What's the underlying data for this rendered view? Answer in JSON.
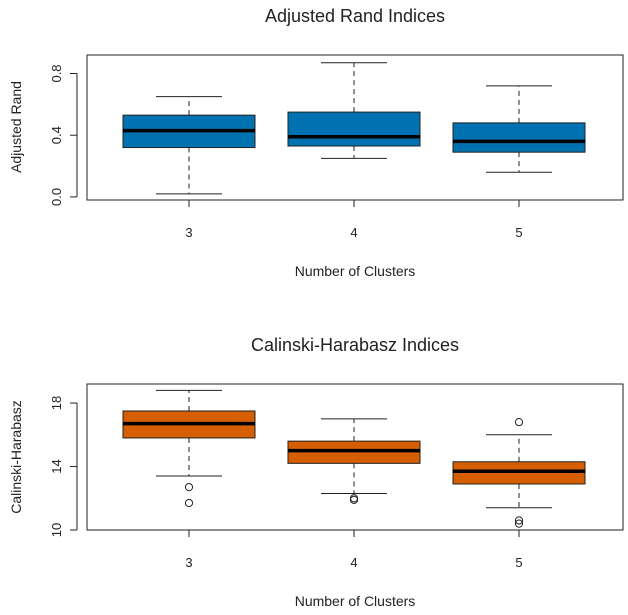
{
  "chart_data": [
    {
      "type": "boxplot",
      "title": "Adjusted Rand Indices",
      "xlabel": "Number of Clusters",
      "ylabel": "Adjusted Rand",
      "categories": [
        "3",
        "4",
        "5"
      ],
      "ylim": [
        -0.02,
        0.92
      ],
      "yticks": [
        0.0,
        0.4,
        0.8
      ],
      "ytick_labels": [
        "0.0",
        "0.4",
        "0.8"
      ],
      "fill_color": "#0072B2",
      "boxes": [
        {
          "whisker_low": 0.02,
          "q1": 0.32,
          "median": 0.43,
          "q3": 0.53,
          "whisker_high": 0.65,
          "outliers": []
        },
        {
          "whisker_low": 0.25,
          "q1": 0.33,
          "median": 0.39,
          "q3": 0.55,
          "whisker_high": 0.87,
          "outliers": []
        },
        {
          "whisker_low": 0.16,
          "q1": 0.29,
          "median": 0.36,
          "q3": 0.48,
          "whisker_high": 0.72,
          "outliers": []
        }
      ]
    },
    {
      "type": "boxplot",
      "title": "Calinski-Harabasz Indices",
      "xlabel": "Number of Clusters",
      "ylabel": "Calinski-Harabasz",
      "categories": [
        "3",
        "4",
        "5"
      ],
      "ylim": [
        10.0,
        19.2
      ],
      "yticks": [
        10,
        14,
        18
      ],
      "ytick_labels": [
        "10",
        "14",
        "18"
      ],
      "fill_color": "#D55E00",
      "boxes": [
        {
          "whisker_low": 13.4,
          "q1": 15.8,
          "median": 16.7,
          "q3": 17.5,
          "whisker_high": 18.8,
          "outliers": [
            12.7,
            11.7
          ]
        },
        {
          "whisker_low": 12.3,
          "q1": 14.2,
          "median": 15.0,
          "q3": 15.6,
          "whisker_high": 17.0,
          "outliers": [
            12.0,
            11.9
          ]
        },
        {
          "whisker_low": 11.4,
          "q1": 12.9,
          "median": 13.7,
          "q3": 14.3,
          "whisker_high": 16.0,
          "outliers": [
            16.8,
            10.6,
            10.4
          ]
        }
      ]
    }
  ]
}
